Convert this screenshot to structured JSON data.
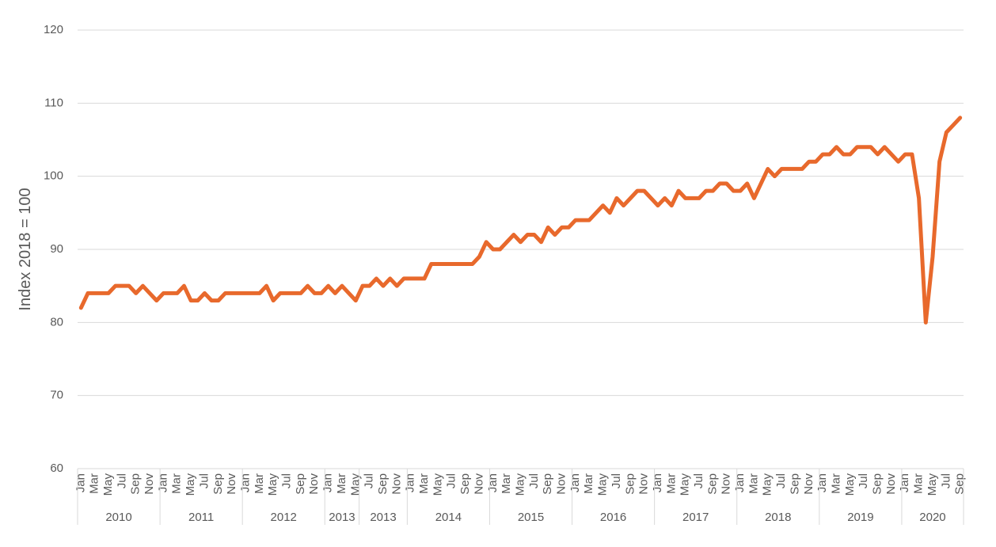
{
  "chart_data": {
    "type": "line",
    "y_label": "Index 2018 = 100",
    "categories": [
      "Jan",
      null,
      "Mar",
      null,
      "May",
      null,
      "Jul",
      null,
      "Sep",
      null,
      "Nov",
      null,
      "Jan",
      null,
      "Mar",
      null,
      "May",
      null,
      "Jul",
      null,
      "Sep",
      null,
      "Nov",
      null,
      "Jan",
      null,
      "Mar",
      null,
      "May",
      null,
      "Jul",
      null,
      "Sep",
      null,
      "Nov",
      null,
      "Jan",
      null,
      "Mar",
      null,
      "May",
      null,
      "Jul",
      null,
      "Sep",
      null,
      "Nov",
      null,
      "Jan",
      null,
      "Mar",
      null,
      "May",
      null,
      "Jul",
      null,
      "Sep",
      null,
      "Nov",
      null,
      "Jan",
      null,
      "Mar",
      null,
      "May",
      null,
      "Jul",
      null,
      "Sep",
      null,
      "Nov",
      null,
      "Jan",
      null,
      "Mar",
      null,
      "May",
      null,
      "Jul",
      null,
      "Sep",
      null,
      "Nov",
      null,
      "Jan",
      null,
      "Mar",
      null,
      "May",
      null,
      "Jul",
      null,
      "Sep",
      null,
      "Nov",
      null,
      "Jan",
      null,
      "Mar",
      null,
      "May",
      null,
      "Jul",
      null,
      "Sep",
      null,
      "Nov",
      null,
      "Jan",
      null,
      "Mar",
      null,
      "May",
      null,
      "Jul",
      null,
      "Sep",
      null,
      "Nov",
      null,
      "Jan",
      null,
      "Mar",
      null,
      "May",
      null,
      "Jul",
      null,
      "Sep"
    ],
    "groups": [
      {
        "label": "2010",
        "size": 12
      },
      {
        "label": "2011",
        "size": 12
      },
      {
        "label": "2012",
        "size": 12
      },
      {
        "label": "2013",
        "size": 5
      },
      {
        "label": "2013",
        "size": 7
      },
      {
        "label": "2014",
        "size": 12
      },
      {
        "label": "2015",
        "size": 12
      },
      {
        "label": "2016",
        "size": 12
      },
      {
        "label": "2017",
        "size": 12
      },
      {
        "label": "2018",
        "size": 12
      },
      {
        "label": "2019",
        "size": 12
      },
      {
        "label": "2020",
        "size": 9
      }
    ],
    "values": [
      82,
      84,
      84,
      84,
      84,
      85,
      85,
      85,
      84,
      85,
      84,
      83,
      84,
      84,
      84,
      85,
      83,
      83,
      84,
      83,
      83,
      84,
      84,
      84,
      84,
      84,
      84,
      85,
      83,
      84,
      84,
      84,
      84,
      85,
      84,
      84,
      85,
      84,
      85,
      84,
      83,
      85,
      85,
      86,
      85,
      86,
      85,
      86,
      86,
      86,
      86,
      88,
      88,
      88,
      88,
      88,
      88,
      88,
      89,
      91,
      90,
      90,
      91,
      92,
      91,
      92,
      92,
      91,
      93,
      92,
      93,
      93,
      94,
      94,
      94,
      95,
      96,
      95,
      97,
      96,
      97,
      98,
      98,
      97,
      96,
      97,
      96,
      98,
      97,
      97,
      97,
      98,
      98,
      99,
      99,
      98,
      98,
      99,
      97,
      99,
      101,
      100,
      101,
      101,
      101,
      101,
      102,
      102,
      103,
      103,
      104,
      103,
      103,
      104,
      104,
      104,
      103,
      104,
      103,
      102,
      103,
      103,
      97,
      80,
      89,
      102,
      106,
      107,
      108
    ],
    "color": "#e8692c",
    "ylim": [
      60,
      120
    ],
    "yticks": [
      60,
      70,
      80,
      90,
      100,
      110,
      120
    ],
    "grid": true
  }
}
